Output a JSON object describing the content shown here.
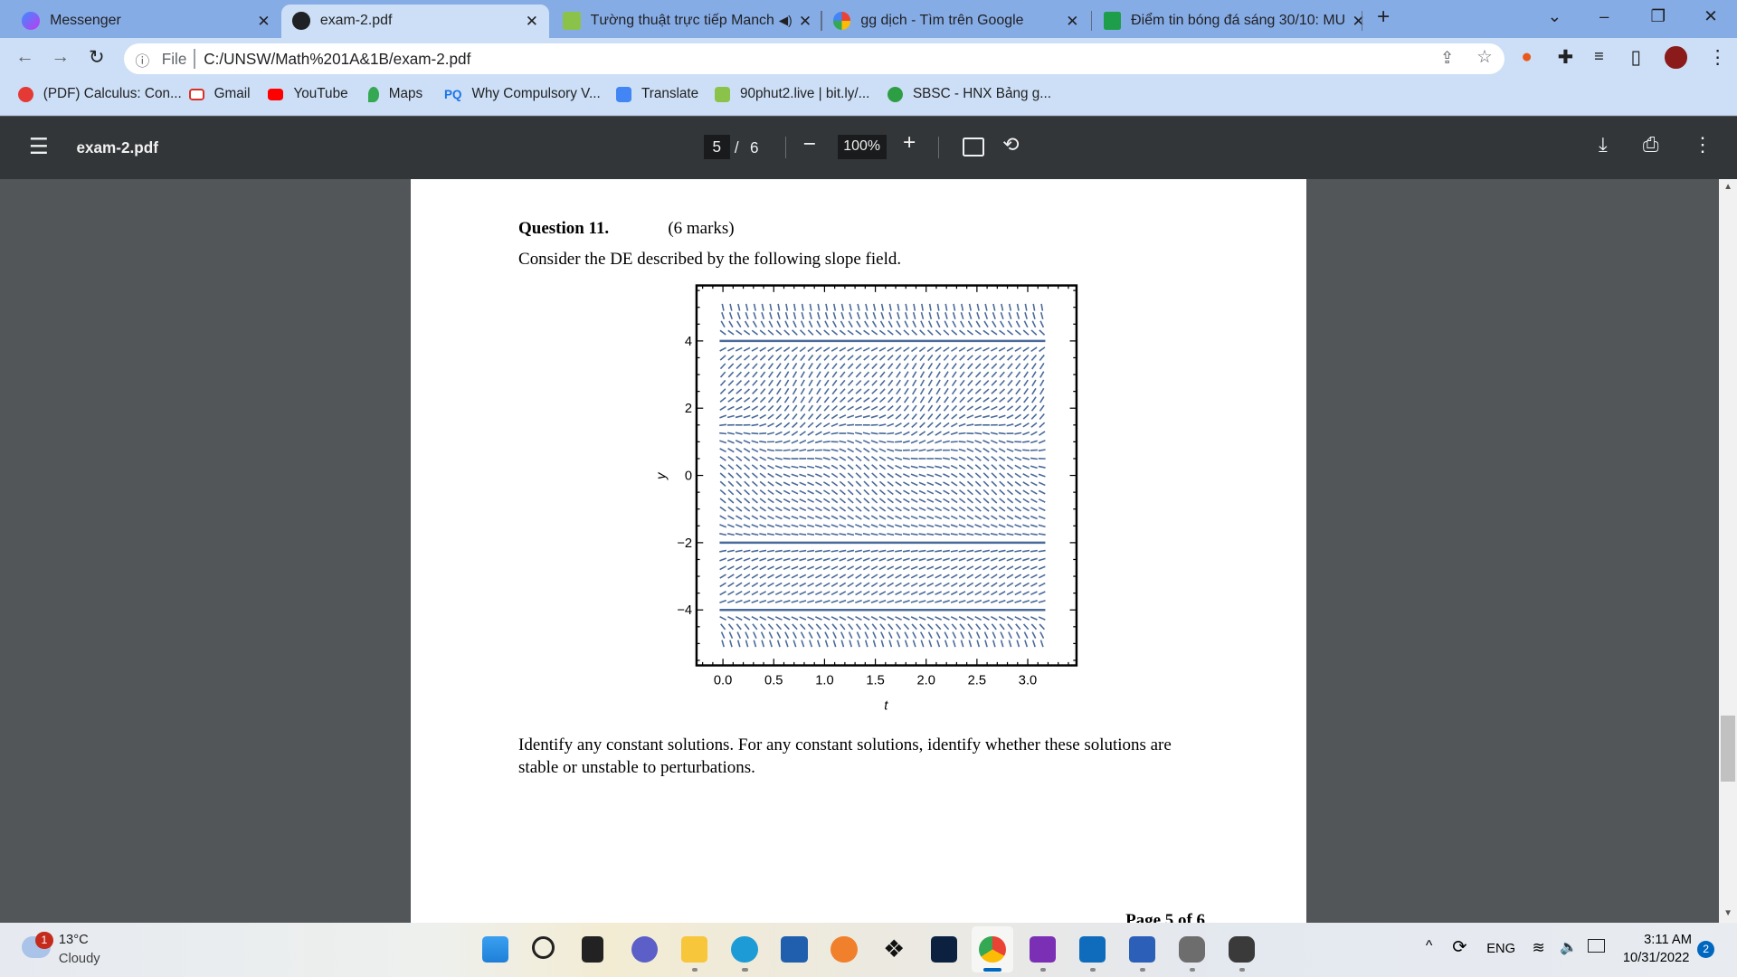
{
  "browser": {
    "tabs": [
      {
        "title": "Messenger",
        "active": false,
        "color": "#a33bf0"
      },
      {
        "title": "exam-2.pdf",
        "active": true,
        "color": "#202124"
      },
      {
        "title": "Tường thuật trực tiếp Manch",
        "active": false,
        "color": "#8bc34a",
        "audio": true
      },
      {
        "title": "gg dịch - Tìm trên Google",
        "active": false,
        "color": "#4285f4"
      },
      {
        "title": "Điểm tin bóng đá sáng 30/10: MU",
        "active": false,
        "color": "#1e9e4a"
      }
    ],
    "new_tab": "+",
    "window_controls": {
      "tab_search": "⌄",
      "minimize": "–",
      "restore": "❐",
      "close": "✕"
    },
    "address": {
      "scheme_label": "File",
      "url": "C:/UNSW/Math%201A&1B/exam-2.pdf"
    },
    "bookmarks": [
      {
        "label": "(PDF) Calculus: Con...",
        "color": "#e53935"
      },
      {
        "label": "Gmail",
        "color": "#d93025"
      },
      {
        "label": "YouTube",
        "color": "#ff0000"
      },
      {
        "label": "Maps",
        "color": "#34a853"
      },
      {
        "label": "Why Compulsory V...",
        "icon_text": "PQ",
        "color": "#1a73e8"
      },
      {
        "label": "Translate",
        "color": "#4285f4"
      },
      {
        "label": "90phut2.live | bit.ly/...",
        "color": "#8bc34a"
      },
      {
        "label": "SBSC - HNX Bảng g...",
        "color": "#2e9e44"
      }
    ]
  },
  "pdf_toolbar": {
    "title": "exam-2.pdf",
    "current_page": "5",
    "page_sep": "/",
    "total_pages": "6",
    "zoom": "100%"
  },
  "document": {
    "question_title": "Question 11.",
    "marks": "(6 marks)",
    "intro": "Consider the DE described by the following slope field.",
    "prompt_line1": "Identify any constant solutions. For any constant solutions, identify whether these solutions are",
    "prompt_line2": "stable or unstable to perturbations.",
    "footer": "Page 5 of 6"
  },
  "chart_data": {
    "type": "slope_field",
    "xlabel": "t",
    "ylabel": "y",
    "xlim": [
      -0.26,
      3.48
    ],
    "ylim": [
      -5.65,
      5.65
    ],
    "field_t_range": [
      0,
      3.14
    ],
    "field_y_range": [
      -5,
      5
    ],
    "x_ticks": [
      "0.0",
      "0.5",
      "1.0",
      "1.5",
      "2.0",
      "2.5",
      "3.0"
    ],
    "y_ticks": [
      "4",
      "2",
      "0",
      "−2",
      "−4"
    ],
    "y_tick_values": [
      4,
      2,
      0,
      -2,
      -4
    ],
    "x_tick_values": [
      0,
      0.5,
      1.0,
      1.5,
      2.0,
      2.5,
      3.0
    ],
    "horizontal_solution_lines": [
      4,
      -2,
      -4
    ],
    "color": "#4a6a9a"
  },
  "taskbar": {
    "weather_temp": "13°C",
    "weather_desc": "Cloudy",
    "weather_badge": "1",
    "language": "ENG",
    "time": "3:11 AM",
    "date": "10/31/2022",
    "notification_count": "2"
  }
}
